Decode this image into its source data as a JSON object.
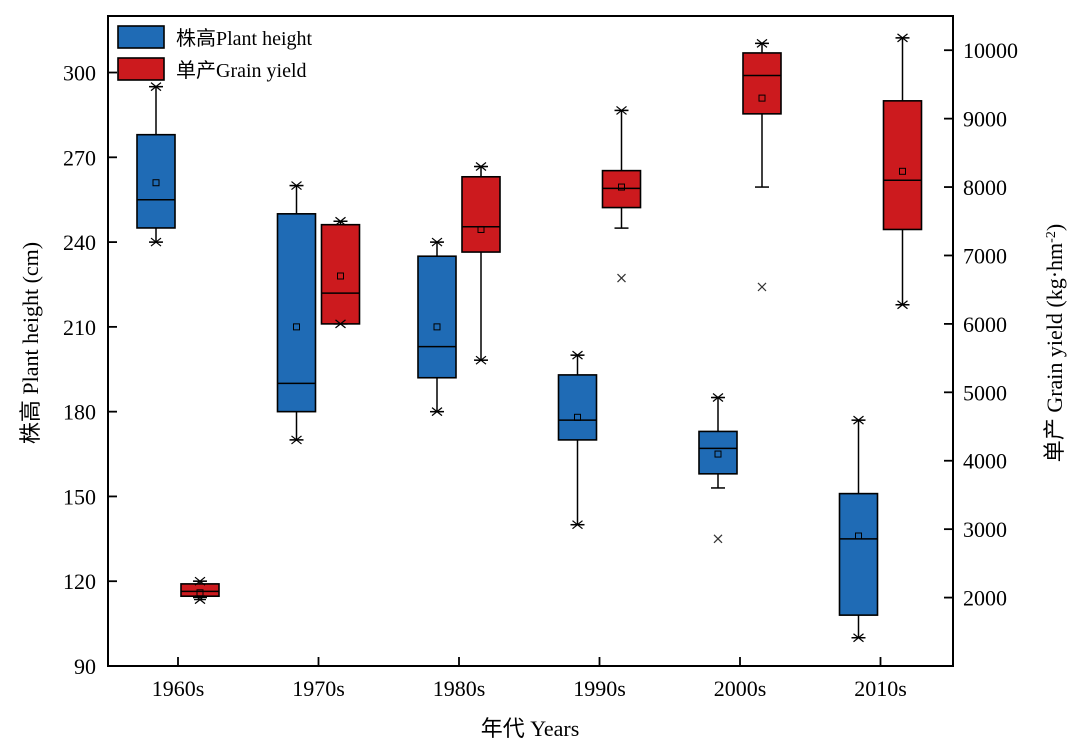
{
  "chart_data": {
    "type": "box",
    "categories": [
      "1960s",
      "1970s",
      "1980s",
      "1990s",
      "2000s",
      "2010s"
    ],
    "xlabel": "年代 Years",
    "ylabel_left": "株高 Plant height (cm)",
    "ylabel_right_main": "单产 Grain yield (kg·hm",
    "ylabel_right_sup": "-2",
    "ylabel_right_close": ")",
    "y_left": {
      "min": 90,
      "max": 320,
      "ticks": [
        90,
        120,
        150,
        180,
        210,
        240,
        270,
        300
      ]
    },
    "y_right": {
      "min": 1000,
      "max": 10500,
      "ticks": [
        2000,
        3000,
        4000,
        5000,
        6000,
        7000,
        8000,
        9000,
        10000
      ]
    },
    "legend": {
      "position": "top-left"
    },
    "series": [
      {
        "name": "株高Plant height",
        "axis": "left",
        "color": "#1f6bb5",
        "boxes": [
          {
            "category": "1960s",
            "whisker_low": 240,
            "q1": 245,
            "median": 255,
            "q3": 278,
            "whisker_high": 295,
            "mean": 261,
            "extremes": [
              240,
              295
            ],
            "outliers": []
          },
          {
            "category": "1970s",
            "whisker_low": 170,
            "q1": 180,
            "median": 190,
            "q3": 250,
            "whisker_high": 260,
            "mean": 210,
            "extremes": [
              170,
              260
            ],
            "outliers": []
          },
          {
            "category": "1980s",
            "whisker_low": 180,
            "q1": 192,
            "median": 203,
            "q3": 235,
            "whisker_high": 240,
            "mean": 210,
            "extremes": [
              180,
              240
            ],
            "outliers": []
          },
          {
            "category": "1990s",
            "whisker_low": 140,
            "q1": 170,
            "median": 177,
            "q3": 193,
            "whisker_high": 200,
            "mean": 178,
            "extremes": [
              140,
              200
            ],
            "outliers": []
          },
          {
            "category": "2000s",
            "whisker_low": 153,
            "q1": 158,
            "median": 167,
            "q3": 173,
            "whisker_high": 185,
            "mean": 165,
            "extremes": [
              185
            ],
            "outliers": [
              135
            ]
          },
          {
            "category": "2010s",
            "whisker_low": 100,
            "q1": 108,
            "median": 135,
            "q3": 151,
            "whisker_high": 177,
            "mean": 136,
            "extremes": [
              100,
              177
            ],
            "outliers": []
          }
        ]
      },
      {
        "name": "单产Grain yield",
        "axis": "right",
        "color": "#cc1a1e",
        "boxes": [
          {
            "category": "1960s",
            "whisker_low": 2000,
            "q1": 2020,
            "median": 2090,
            "q3": 2200,
            "whisker_high": 2240,
            "mean": 2070,
            "extremes": [
              1970,
              2240
            ],
            "outliers": []
          },
          {
            "category": "1970s",
            "whisker_low": 6000,
            "q1": 6000,
            "median": 6450,
            "q3": 7450,
            "whisker_high": 7500,
            "mean": 6700,
            "extremes": [
              6000,
              7500
            ],
            "outliers": []
          },
          {
            "category": "1980s",
            "whisker_low": 5470,
            "q1": 7050,
            "median": 7420,
            "q3": 8150,
            "whisker_high": 8300,
            "mean": 7380,
            "extremes": [
              5470,
              8300
            ],
            "outliers": []
          },
          {
            "category": "1990s",
            "whisker_low": 7400,
            "q1": 7700,
            "median": 7980,
            "q3": 8240,
            "whisker_high": 9120,
            "mean": 8000,
            "extremes": [
              9120
            ],
            "outliers": [
              6670
            ]
          },
          {
            "category": "2000s",
            "whisker_low": 8000,
            "q1": 9070,
            "median": 9630,
            "q3": 9960,
            "whisker_high": 10100,
            "mean": 9300,
            "extremes": [
              10100
            ],
            "outliers": [
              6540
            ]
          },
          {
            "category": "2010s",
            "whisker_low": 6280,
            "q1": 7380,
            "median": 8100,
            "q3": 9260,
            "whisker_high": 10180,
            "mean": 8230,
            "extremes": [
              6280,
              10180
            ],
            "outliers": []
          }
        ]
      }
    ]
  }
}
